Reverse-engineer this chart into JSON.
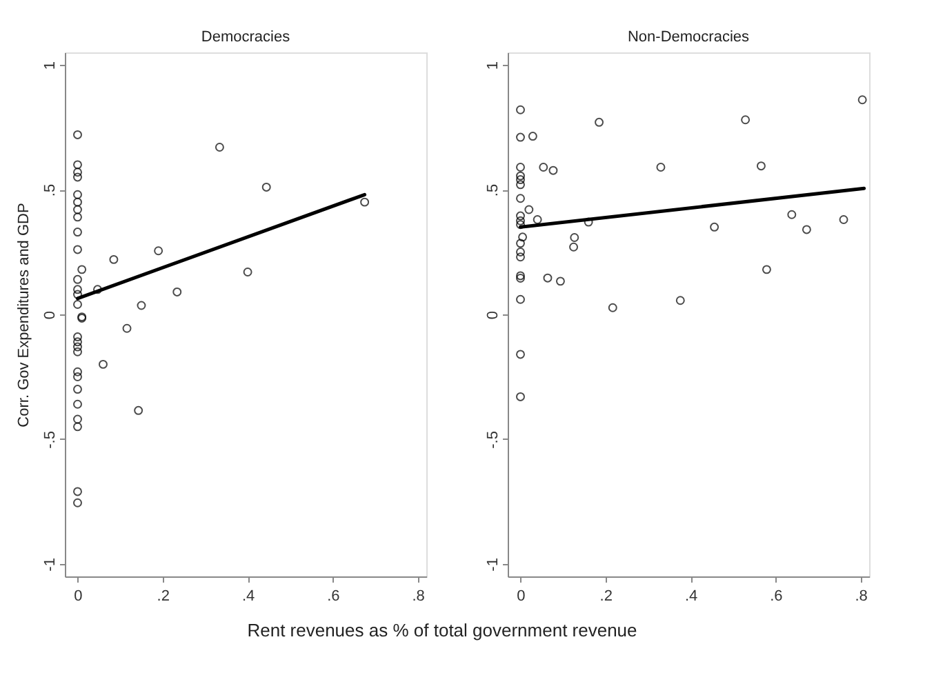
{
  "chart_data": [
    {
      "type": "scatter",
      "title": "Democracies",
      "xlabel": "Rent revenues as % of total government revenue",
      "ylabel": "Corr. Gov Expenditures and GDP",
      "xlim": [
        -0.03,
        0.82
      ],
      "ylim": [
        -1.05,
        1.05
      ],
      "xticks": [
        {
          "value": 0,
          "label": "0"
        },
        {
          "value": 0.2,
          "label": ".2"
        },
        {
          "value": 0.4,
          "label": ".4"
        },
        {
          "value": 0.6,
          "label": ".6"
        },
        {
          "value": 0.8,
          "label": ".8"
        }
      ],
      "yticks": [
        {
          "value": -1,
          "label": "-1"
        },
        {
          "value": -0.5,
          "label": "-.5"
        },
        {
          "value": 0,
          "label": "0"
        },
        {
          "value": 0.5,
          "label": ".5"
        },
        {
          "value": 1,
          "label": "1"
        }
      ],
      "grid": false,
      "series": [
        {
          "marker": "circle",
          "color": "#000000",
          "x": [
            0,
            0,
            0,
            0,
            0,
            0,
            0,
            0,
            0,
            0,
            0.01,
            0,
            0,
            0,
            0,
            0.01,
            0.085,
            0.047,
            0.19,
            0.15,
            0.234,
            0.334,
            0.444,
            0.4,
            0.675,
            0.116,
            0.01,
            0,
            0,
            0,
            0,
            0.06,
            0,
            0,
            0,
            0,
            0,
            0,
            0.143,
            0,
            0
          ],
          "values": [
            0.72,
            0.6,
            0.57,
            0.55,
            0.48,
            0.45,
            0.42,
            0.39,
            0.33,
            0.26,
            0.18,
            0.14,
            0.1,
            0.08,
            0.04,
            -0.01,
            0.22,
            0.1,
            0.255,
            0.036,
            0.09,
            0.67,
            0.51,
            0.17,
            0.45,
            -0.056,
            -0.015,
            -0.09,
            -0.11,
            -0.13,
            -0.15,
            -0.2,
            -0.23,
            -0.25,
            -0.3,
            -0.36,
            -0.42,
            -0.45,
            -0.385,
            -0.71,
            -0.755
          ]
        },
        {
          "type": "line",
          "color": "#000000",
          "x": [
            0,
            0.675
          ],
          "values": [
            0.064,
            0.48
          ]
        }
      ]
    },
    {
      "type": "scatter",
      "title": "Non-Democracies",
      "xlim": [
        -0.03,
        0.82
      ],
      "ylim": [
        -1.05,
        1.05
      ],
      "xticks": [
        {
          "value": 0,
          "label": "0"
        },
        {
          "value": 0.2,
          "label": ".2"
        },
        {
          "value": 0.4,
          "label": ".4"
        },
        {
          "value": 0.6,
          "label": ".6"
        },
        {
          "value": 0.8,
          "label": ".8"
        }
      ],
      "yticks": [
        {
          "value": -1,
          "label": "-1"
        },
        {
          "value": -0.5,
          "label": "-.5"
        },
        {
          "value": 0,
          "label": "0"
        },
        {
          "value": 0.5,
          "label": ".5"
        },
        {
          "value": 1,
          "label": "1"
        }
      ],
      "grid": false,
      "series": [
        {
          "marker": "circle",
          "color": "#000000",
          "x": [
            0,
            0,
            0.029,
            0,
            0,
            0,
            0,
            0,
            0.02,
            0,
            0,
            0.04,
            0,
            0.005,
            0,
            0,
            0,
            0,
            0,
            0,
            0.054,
            0.077,
            0.064,
            0.094,
            0.127,
            0.125,
            0.16,
            0.185,
            0.217,
            0.33,
            0.376,
            0.456,
            0.529,
            0.566,
            0.579,
            0.638,
            0.673,
            0.76,
            0.804,
            0,
            0
          ],
          "values": [
            0.82,
            0.71,
            0.714,
            0.59,
            0.555,
            0.54,
            0.52,
            0.465,
            0.42,
            0.395,
            0.375,
            0.38,
            0.36,
            0.31,
            0.285,
            0.25,
            0.23,
            0.155,
            0.145,
            0.06,
            0.59,
            0.577,
            0.146,
            0.133,
            0.308,
            0.27,
            0.37,
            0.77,
            0.027,
            0.59,
            0.056,
            0.35,
            0.78,
            0.595,
            0.18,
            0.4,
            0.34,
            0.38,
            0.86,
            -0.16,
            -0.33
          ]
        },
        {
          "type": "line",
          "color": "#000000",
          "x": [
            0,
            0.808
          ],
          "values": [
            0.35,
            0.505
          ]
        }
      ]
    }
  ]
}
